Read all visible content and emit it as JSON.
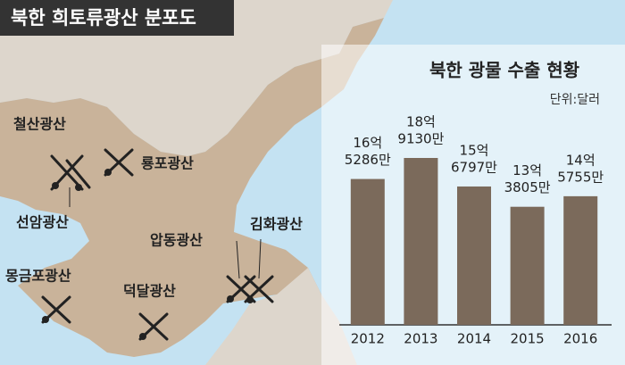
{
  "map": {
    "title": "북한 희토류광산 분포도",
    "mines": [
      "철산광산",
      "룡포광산",
      "선암광산",
      "압동광산",
      "김화광산",
      "몽금포광산",
      "덕달광산"
    ]
  },
  "chart_data": {
    "type": "bar",
    "title": "북한 광물 수출 현황",
    "unit": "단위:달러",
    "categories": [
      "2012",
      "2013",
      "2014",
      "2015",
      "2016"
    ],
    "values": [
      1652860000,
      1891300000,
      1567970000,
      1338050000,
      1457550000
    ],
    "value_labels": [
      [
        "16억",
        "5286만"
      ],
      [
        "18억",
        "9130만"
      ],
      [
        "15억",
        "6797만"
      ],
      [
        "13억",
        "3805만"
      ],
      [
        "14억",
        "5755만"
      ]
    ],
    "color": "#7b6a5b"
  }
}
